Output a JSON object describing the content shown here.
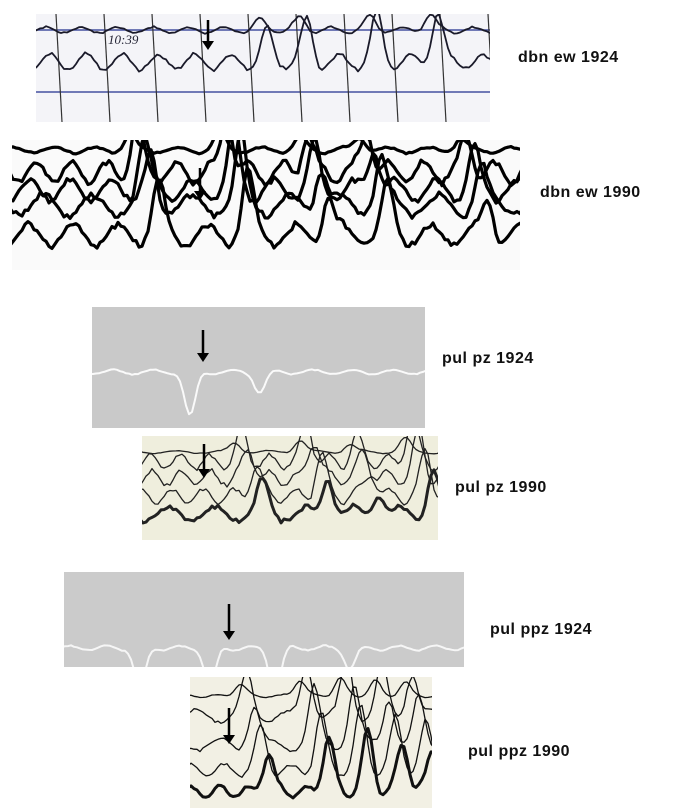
{
  "panels": [
    {
      "label": "dbn ew 1924",
      "annotation": "10:39"
    },
    {
      "label": "dbn ew 1990"
    },
    {
      "label": "pul pz 1924"
    },
    {
      "label": "pul pz 1990"
    },
    {
      "label": "pul ppz 1924"
    },
    {
      "label": "pul ppz 1990"
    }
  ]
}
